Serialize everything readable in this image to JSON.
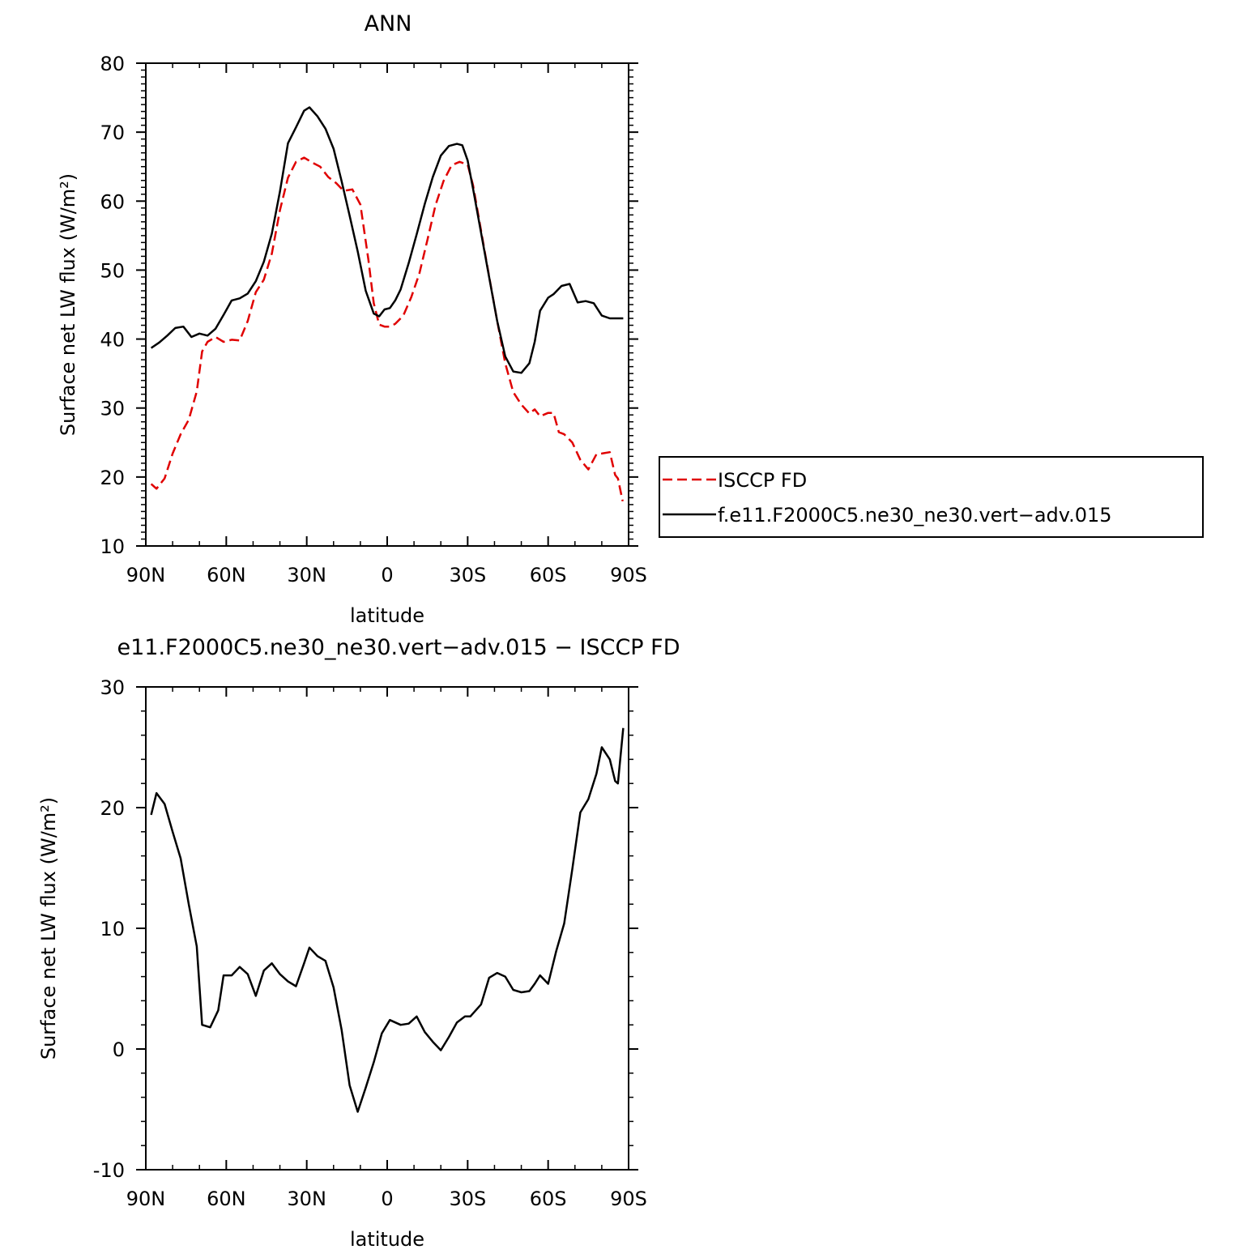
{
  "chart_data": [
    {
      "type": "line",
      "title": "ANN",
      "xlabel": "latitude",
      "ylabel": "Surface net LW flux (W/m²)",
      "xlim": [
        90,
        -90
      ],
      "ylim": [
        10,
        80
      ],
      "xticks": [
        {
          "value": 90,
          "label": "90N"
        },
        {
          "value": 60,
          "label": "60N"
        },
        {
          "value": 30,
          "label": "30N"
        },
        {
          "value": 0,
          "label": "0"
        },
        {
          "value": -30,
          "label": "30S"
        },
        {
          "value": -60,
          "label": "60S"
        },
        {
          "value": -90,
          "label": "90S"
        }
      ],
      "yticks": [
        10,
        20,
        30,
        40,
        50,
        60,
        70,
        80
      ],
      "legend": {
        "position": "right",
        "items": [
          {
            "series": 0,
            "label": "ISCCP FD"
          },
          {
            "series": 1,
            "label": "f.e11.F2000C5.ne30_ne30.vert−adv.015"
          }
        ]
      },
      "series": [
        {
          "name": "ISCCP FD",
          "color": "#e00000",
          "dash": "dashed",
          "x": [
            88,
            86,
            83,
            80,
            77,
            74,
            71,
            69,
            67,
            64,
            61,
            58,
            55,
            52,
            49,
            46,
            43,
            40,
            37,
            34,
            31,
            28,
            25,
            22,
            19,
            17,
            16,
            13,
            10,
            7,
            5,
            3,
            1,
            -1,
            -3,
            -6,
            -9,
            -12,
            -15,
            -18,
            -21,
            -24,
            -27,
            -30,
            -32,
            -35,
            -38,
            -41,
            -44,
            -47,
            -50,
            -53,
            -55,
            -57,
            -60,
            -62,
            -64,
            -66,
            -69,
            -72,
            -75,
            -78,
            -80,
            -83,
            -85,
            -86,
            -87.8
          ],
          "y": [
            19,
            18.3,
            19.8,
            23.4,
            26.2,
            28.3,
            32.4,
            38.2,
            39.6,
            40.3,
            39.6,
            39.9,
            39.8,
            42.6,
            46.8,
            48.6,
            52.4,
            58.7,
            63.4,
            65.7,
            66.3,
            65.6,
            65.0,
            63.5,
            62.6,
            61.8,
            61.5,
            61.7,
            59.5,
            51.5,
            45.2,
            42.1,
            41.8,
            41.8,
            42.2,
            43.4,
            46.1,
            49.5,
            54.4,
            59.4,
            62.9,
            65.2,
            65.7,
            65.3,
            62.3,
            55.7,
            49.1,
            42.6,
            36.5,
            32.3,
            30.5,
            29.2,
            29.8,
            28.8,
            29.3,
            29.3,
            26.5,
            26.2,
            25.0,
            22.5,
            21.1,
            23.3,
            23.4,
            23.6,
            20.3,
            19.8,
            16.5
          ]
        },
        {
          "name": "f.e11.F2000C5.ne30_ne30.vert−adv.015",
          "color": "#000000",
          "dash": "solid",
          "x": [
            88,
            85,
            82,
            79,
            76,
            73,
            70,
            67,
            64,
            61,
            58,
            55,
            52,
            49,
            46,
            43,
            40,
            37,
            34,
            31,
            29,
            26,
            23,
            20,
            17,
            14,
            11,
            8,
            6,
            5,
            3,
            1,
            -1,
            -3,
            -5,
            -8,
            -11,
            -14,
            -17,
            -20,
            -23,
            -26,
            -28,
            -30,
            -32,
            -35,
            -38,
            -41,
            -44,
            -47,
            -50,
            -53,
            -55,
            -57,
            -60,
            -62,
            -65,
            -68,
            -71,
            -74,
            -77,
            -80,
            -83,
            -86,
            -88
          ],
          "y": [
            38.7,
            39.5,
            40.5,
            41.6,
            41.8,
            40.3,
            40.8,
            40.5,
            41.5,
            43.5,
            45.6,
            45.9,
            46.6,
            48.4,
            51.2,
            55.3,
            61.4,
            68.4,
            70.7,
            73.1,
            73.6,
            72.3,
            70.5,
            67.6,
            62.9,
            57.9,
            52.7,
            47.0,
            44.8,
            43.7,
            43.3,
            44.3,
            44.5,
            45.6,
            47.2,
            51.0,
            55.2,
            59.6,
            63.5,
            66.6,
            68.0,
            68.3,
            68.1,
            65.9,
            61.8,
            55.4,
            49.0,
            42.6,
            37.5,
            35.3,
            35.1,
            36.5,
            39.6,
            44.1,
            46.0,
            46.5,
            47.7,
            48.0,
            45.3,
            45.5,
            45.2,
            43.4,
            43.0,
            43.0,
            43.0
          ]
        }
      ]
    },
    {
      "type": "line",
      "title": "e11.F2000C5.ne30_ne30.vert−adv.015 − ISCCP FD",
      "xlabel": "latitude",
      "ylabel": "Surface net LW flux (W/m²)",
      "xlim": [
        90,
        -90
      ],
      "ylim": [
        -10,
        30
      ],
      "xticks": [
        {
          "value": 90,
          "label": "90N"
        },
        {
          "value": 60,
          "label": "60N"
        },
        {
          "value": 30,
          "label": "30N"
        },
        {
          "value": 0,
          "label": "0"
        },
        {
          "value": -30,
          "label": "30S"
        },
        {
          "value": -60,
          "label": "60S"
        },
        {
          "value": -90,
          "label": "90S"
        }
      ],
      "yticks": [
        -10,
        0,
        10,
        20,
        30
      ],
      "series": [
        {
          "color": "#000000",
          "dash": "solid",
          "x": [
            88,
            86,
            83,
            80,
            77,
            74,
            71,
            69,
            66,
            63,
            61,
            58,
            55,
            52,
            49,
            46,
            43,
            40,
            37,
            34,
            31,
            29,
            26,
            23,
            20,
            17,
            14,
            11,
            8,
            5,
            2,
            -1,
            -3,
            -5,
            -8,
            -11,
            -14,
            -17,
            -20,
            -23,
            -26,
            -29,
            -31,
            -35,
            -38,
            -41,
            -44,
            -47,
            -50,
            -53,
            -55,
            -57,
            -60,
            -63,
            -66,
            -69,
            -72,
            -75,
            -78,
            -80,
            -83,
            -85,
            -86,
            -88
          ],
          "y": [
            19.4,
            21.2,
            20.3,
            18.0,
            15.8,
            12.0,
            8.5,
            2.0,
            1.8,
            3.2,
            6.1,
            6.1,
            6.8,
            6.2,
            4.4,
            6.5,
            7.1,
            6.2,
            5.6,
            5.2,
            7.1,
            8.4,
            7.7,
            7.3,
            5.1,
            1.6,
            -3.0,
            -5.2,
            -3.2,
            -1.1,
            1.3,
            2.4,
            2.2,
            2.0,
            2.1,
            2.7,
            1.4,
            0.6,
            -0.1,
            1.0,
            2.2,
            2.7,
            2.7,
            3.7,
            5.9,
            6.3,
            6.0,
            4.9,
            4.7,
            4.8,
            5.4,
            6.1,
            5.4,
            8.1,
            10.4,
            14.9,
            19.6,
            20.7,
            22.8,
            25.0,
            24.0,
            22.2,
            22.0,
            26.6
          ]
        }
      ]
    }
  ]
}
